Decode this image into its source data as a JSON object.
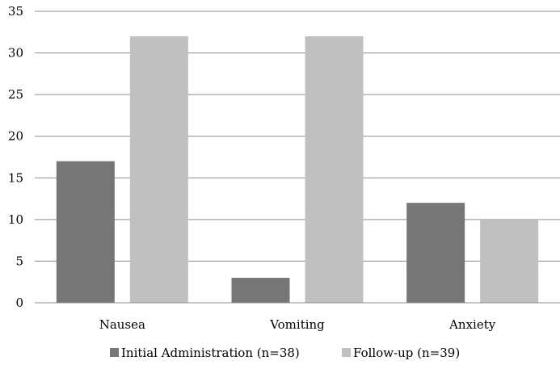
{
  "chart_data": {
    "type": "bar",
    "categories": [
      "Nausea",
      "Vomiting",
      "Anxiety"
    ],
    "series": [
      {
        "name": "Initial Administration (n=38)",
        "values": [
          17,
          3,
          12
        ],
        "color": "#767676"
      },
      {
        "name": "Follow-up (n=39)",
        "values": [
          32,
          32,
          10
        ],
        "color": "#c0c0c0"
      }
    ],
    "yticks": [
      "0",
      "5",
      "10",
      "15",
      "20",
      "25",
      "30",
      "35"
    ],
    "ylim": [
      0,
      35
    ],
    "grid": true,
    "legend_position": "bottom"
  }
}
